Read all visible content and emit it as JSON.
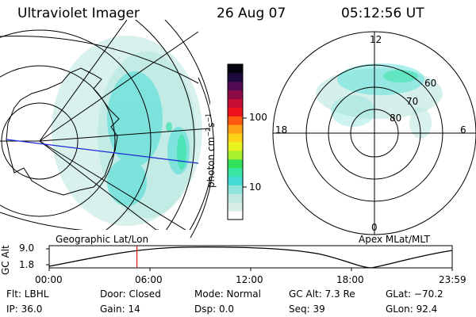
{
  "header": {
    "instrument": "Ultraviolet Imager",
    "date": "26 Aug 07",
    "time": "05:12:56 UT"
  },
  "colorbar": {
    "unit": "photon cm",
    "exp1": "−2",
    "mid": "s",
    "exp2": "−1",
    "tick_high": "100",
    "tick_low": "10",
    "colors": [
      "#ffffff",
      "#d7eee6",
      "#bfe8e0",
      "#8fe5dc",
      "#46dcd6",
      "#39e6a8",
      "#32e35a",
      "#a6f030",
      "#e8f320",
      "#ffd21a",
      "#ffa21a",
      "#ff5a12",
      "#f0121a",
      "#c80e36",
      "#8c0a46",
      "#510a54",
      "#1b0a3a",
      "#050512"
    ]
  },
  "left_map": {
    "caption": "Geographic Lat/Lon"
  },
  "right_map": {
    "caption": "Apex MLat/MLT",
    "labels": {
      "top": "12",
      "left": "18",
      "right": "6",
      "bottom": "0",
      "r60": "60",
      "r70": "70",
      "r80": "80"
    }
  },
  "altitude_plot": {
    "ylabel": "GC Alt",
    "ytick_high": "9.0",
    "ytick_low": "1.8",
    "xticks": [
      "00:00",
      "06:00",
      "12:00",
      "18:00",
      "23:59"
    ],
    "marker_hour": 5.22
  },
  "info": {
    "flt": "Flt: LBHL",
    "ip": "IP: 36.0",
    "door": "Door: Closed",
    "gain": "Gain: 14",
    "mode": "Mode:  Normal",
    "dsp": "Dsp:      0.0",
    "gcalt": "GC Alt:  7.3 Re",
    "seq": "Seq:  39",
    "glat": "GLat:  −70.2",
    "glon": "GLon:   92.4"
  }
}
